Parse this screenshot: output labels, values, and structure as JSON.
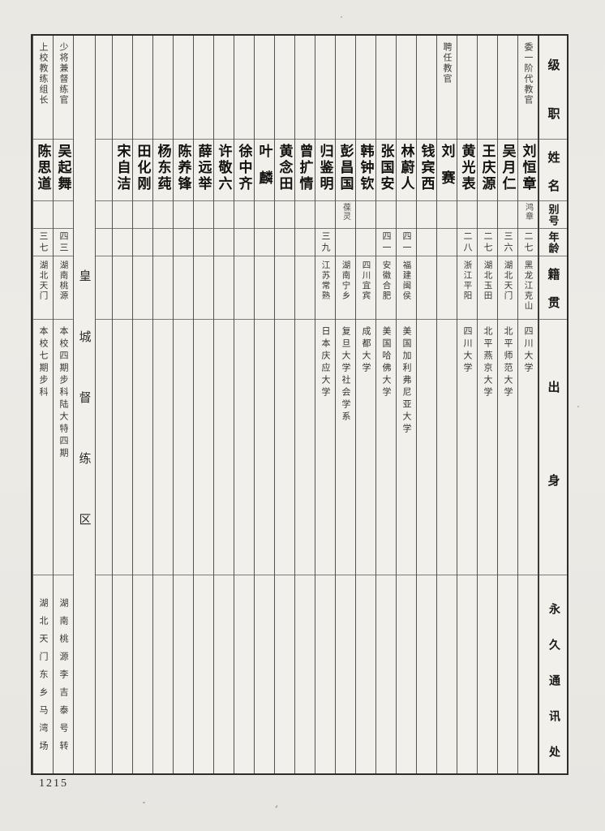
{
  "page": {
    "number": "1215"
  },
  "table": {
    "headers": {
      "rank": "级职",
      "name": "姓名",
      "alias": "别号",
      "age": "年龄",
      "native": "籍贯",
      "background": "出身",
      "address": "永久通讯处"
    },
    "region_label": "皇城督练区",
    "persons": [
      {
        "rank": "委一阶代教官",
        "name": "刘恒章",
        "alias": "鸿章",
        "age": "二七",
        "native": "黑龙江克山",
        "background": "四川大学",
        "address": ""
      },
      {
        "rank": "",
        "name": "吴月仁",
        "alias": "",
        "age": "三六",
        "native": "湖北天门",
        "background": "北平师范大学",
        "address": ""
      },
      {
        "rank": "",
        "name": "王庆源",
        "alias": "",
        "age": "二七",
        "native": "湖北玉田",
        "background": "北平燕京大学",
        "address": ""
      },
      {
        "rank": "",
        "name": "黄光表",
        "alias": "",
        "age": "二八",
        "native": "浙江平阳",
        "background": "四川大学",
        "address": ""
      },
      {
        "rank": "聘任教官",
        "name": "刘赛",
        "alias": "",
        "age": "",
        "native": "",
        "background": "",
        "address": ""
      },
      {
        "rank": "",
        "name": "钱宾西",
        "alias": "",
        "age": "",
        "native": "",
        "background": "",
        "address": ""
      },
      {
        "rank": "",
        "name": "林蔚人",
        "alias": "",
        "age": "四一",
        "native": "福建闽侯",
        "background": "美国加利弗尼亚大学",
        "address": ""
      },
      {
        "rank": "",
        "name": "张国安",
        "alias": "",
        "age": "四一",
        "native": "安徽合肥",
        "background": "美国哈佛大学",
        "address": ""
      },
      {
        "rank": "",
        "name": "韩钟钦",
        "alias": "",
        "age": "",
        "native": "四川宜宾",
        "background": "成都大学",
        "address": ""
      },
      {
        "rank": "",
        "name": "彭昌国",
        "alias": "葆灵",
        "age": "",
        "native": "湖南宁乡",
        "background": "复旦大学社会学系",
        "address": ""
      },
      {
        "rank": "",
        "name": "归鉴明",
        "alias": "",
        "age": "三九",
        "native": "江苏常熟",
        "background": "日本庆应大学",
        "address": ""
      },
      {
        "rank": "",
        "name": "曾扩情",
        "alias": "",
        "age": "",
        "native": "",
        "background": "",
        "address": ""
      },
      {
        "rank": "",
        "name": "黄念田",
        "alias": "",
        "age": "",
        "native": "",
        "background": "",
        "address": ""
      },
      {
        "rank": "",
        "name": "叶麟",
        "alias": "",
        "age": "",
        "native": "",
        "background": "",
        "address": ""
      },
      {
        "rank": "",
        "name": "徐中齐",
        "alias": "",
        "age": "",
        "native": "",
        "background": "",
        "address": ""
      },
      {
        "rank": "",
        "name": "许敬六",
        "alias": "",
        "age": "",
        "native": "",
        "background": "",
        "address": ""
      },
      {
        "rank": "",
        "name": "薛远举",
        "alias": "",
        "age": "",
        "native": "",
        "background": "",
        "address": ""
      },
      {
        "rank": "",
        "name": "陈养锋",
        "alias": "",
        "age": "",
        "native": "",
        "background": "",
        "address": ""
      },
      {
        "rank": "",
        "name": "杨东莼",
        "alias": "",
        "age": "",
        "native": "",
        "background": "",
        "address": ""
      },
      {
        "rank": "",
        "name": "田化刚",
        "alias": "",
        "age": "",
        "native": "",
        "background": "",
        "address": ""
      },
      {
        "rank": "",
        "name": "宋自洁",
        "alias": "",
        "age": "",
        "native": "",
        "background": "",
        "address": ""
      },
      {
        "rank": "",
        "name": "",
        "alias": "",
        "age": "",
        "native": "",
        "background": "",
        "address": ""
      },
      {
        "rank": "少将兼督练官",
        "name": "吴起舞",
        "alias": "",
        "age": "四三",
        "native": "湖南桃源",
        "background": "本校四期步科陆大特四期",
        "address": "湖南桃源李吉泰号转"
      },
      {
        "rank": "上校教练组长",
        "name": "陈思道",
        "alias": "",
        "age": "三七",
        "native": "湖北天门",
        "background": "本校七期步科",
        "address": "湖北天门东乡马湾场"
      }
    ]
  }
}
